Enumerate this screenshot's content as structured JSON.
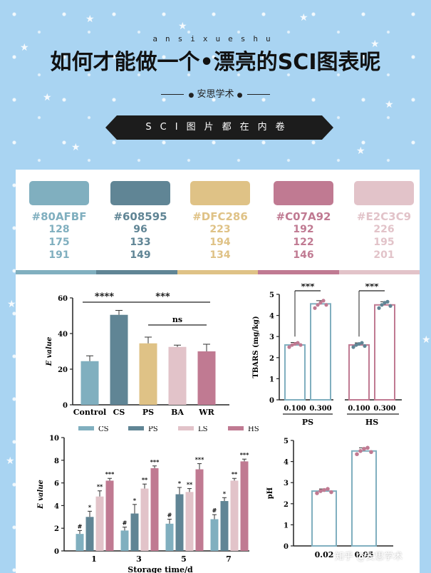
{
  "header": {
    "pinyin": "ansixueshu",
    "title": "如何才能做一个•漂亮的SCI图表呢",
    "author": "安思学术",
    "banner": "SCI图片都在内卷"
  },
  "palette": [
    {
      "hex": "#80AFBF",
      "r": "128",
      "g": "175",
      "b": "191",
      "color": "#80AFBF"
    },
    {
      "hex": "#608595",
      "r": "96",
      "g": "133",
      "b": "149",
      "color": "#608595"
    },
    {
      "hex": "#DFC286",
      "r": "223",
      "g": "194",
      "b": "134",
      "color": "#DFC286"
    },
    {
      "hex": "#C07A92",
      "r": "192",
      "g": "122",
      "b": "146",
      "color": "#C07A92"
    },
    {
      "hex": "#E2C3C9",
      "r": "226",
      "g": "195",
      "b": "201",
      "color": "#E2C3C9"
    }
  ],
  "watermark": "知乎 @安思学术",
  "chart_data": [
    {
      "type": "bar",
      "categories": [
        "Control",
        "CS",
        "PS",
        "BA",
        "WR"
      ],
      "values": [
        24.5,
        50.5,
        34.5,
        32.5,
        30
      ],
      "errors": [
        3,
        2.5,
        3.5,
        1,
        4
      ],
      "colors": [
        "#80AFBF",
        "#608595",
        "#DFC286",
        "#E2C3C9",
        "#C07A92"
      ],
      "ylabel": "E value",
      "ylim": [
        0,
        60
      ],
      "yticks": [
        "0",
        "20",
        "40",
        "60"
      ],
      "sig": [
        {
          "label": "****",
          "from": 0,
          "to": 1
        },
        {
          "label": "***",
          "from": 1,
          "to": 4
        },
        {
          "label": "ns",
          "from": 2,
          "to": 4
        }
      ]
    },
    {
      "type": "bar",
      "groups": [
        "PS",
        "HS"
      ],
      "categories": [
        "0.100",
        "0.300",
        "0.100",
        "0.300"
      ],
      "values": [
        2.6,
        4.55,
        2.6,
        4.5
      ],
      "errors": [
        0.12,
        0.15,
        0.1,
        0.15
      ],
      "colors": [
        "#80AFBF",
        "#80AFBF",
        "#C07A92",
        "#C07A92"
      ],
      "points": [
        [
          2.5,
          2.6,
          2.65,
          2.7,
          2.6
        ],
        [
          4.35,
          4.5,
          4.6,
          4.7,
          4.5
        ],
        [
          2.5,
          2.6,
          2.65,
          2.7,
          2.55
        ],
        [
          4.35,
          4.5,
          4.6,
          4.65,
          4.45
        ]
      ],
      "point_colors": [
        "#C07A92",
        "#C07A92",
        "#608595",
        "#608595"
      ],
      "ylabel": "TBARS (mg/kg)",
      "ylim": [
        0,
        5
      ],
      "yticks": [
        "0",
        "1",
        "2",
        "3",
        "4",
        "5"
      ],
      "sig": [
        {
          "label": "***",
          "from": 0,
          "to": 1
        },
        {
          "label": "***",
          "from": 2,
          "to": 3
        }
      ]
    },
    {
      "type": "bar",
      "categories": [
        "1",
        "3",
        "5",
        "7"
      ],
      "series": [
        {
          "name": "CS",
          "values": [
            1.5,
            1.8,
            2.4,
            2.8
          ],
          "errors": [
            0.3,
            0.3,
            0.4,
            0.4
          ],
          "labels": [
            "#",
            "#",
            "#",
            "#"
          ],
          "color": "#80AFBF"
        },
        {
          "name": "PS",
          "values": [
            3.0,
            3.3,
            5.0,
            4.4
          ],
          "errors": [
            0.5,
            0.8,
            0.6,
            0.3
          ],
          "labels": [
            "*",
            "*",
            "*",
            "*"
          ],
          "color": "#608595"
        },
        {
          "name": "LS",
          "values": [
            4.8,
            5.5,
            5.2,
            6.2
          ],
          "errors": [
            0.5,
            0.4,
            0.3,
            0.2
          ],
          "labels": [
            "**",
            "**",
            "**",
            "**"
          ],
          "color": "#E2C3C9"
        },
        {
          "name": "HS",
          "values": [
            6.2,
            7.3,
            7.2,
            7.9
          ],
          "errors": [
            0.2,
            0.2,
            0.5,
            0.2
          ],
          "labels": [
            "***",
            "***",
            "***",
            "***"
          ],
          "color": "#C07A92"
        }
      ],
      "xlabel": "Storage time/d",
      "ylabel": "E value",
      "ylim": [
        0,
        10
      ],
      "yticks": [
        "0",
        "2",
        "4",
        "6",
        "8",
        "10"
      ],
      "legend": "top"
    },
    {
      "type": "bar",
      "categories": [
        "0.02",
        "0.05"
      ],
      "values": [
        2.6,
        4.5
      ],
      "errors": [
        0.1,
        0.15
      ],
      "colors": [
        "#80AFBF",
        "#80AFBF"
      ],
      "points": [
        [
          2.5,
          2.6,
          2.65,
          2.7,
          2.55
        ],
        [
          4.35,
          4.5,
          4.6,
          4.65,
          4.45
        ]
      ],
      "point_colors": [
        "#C07A92",
        "#C07A92"
      ],
      "ylabel": "pH",
      "ylim": [
        0,
        5
      ],
      "yticks": [
        "0",
        "1",
        "2",
        "3",
        "4",
        "5"
      ]
    }
  ]
}
